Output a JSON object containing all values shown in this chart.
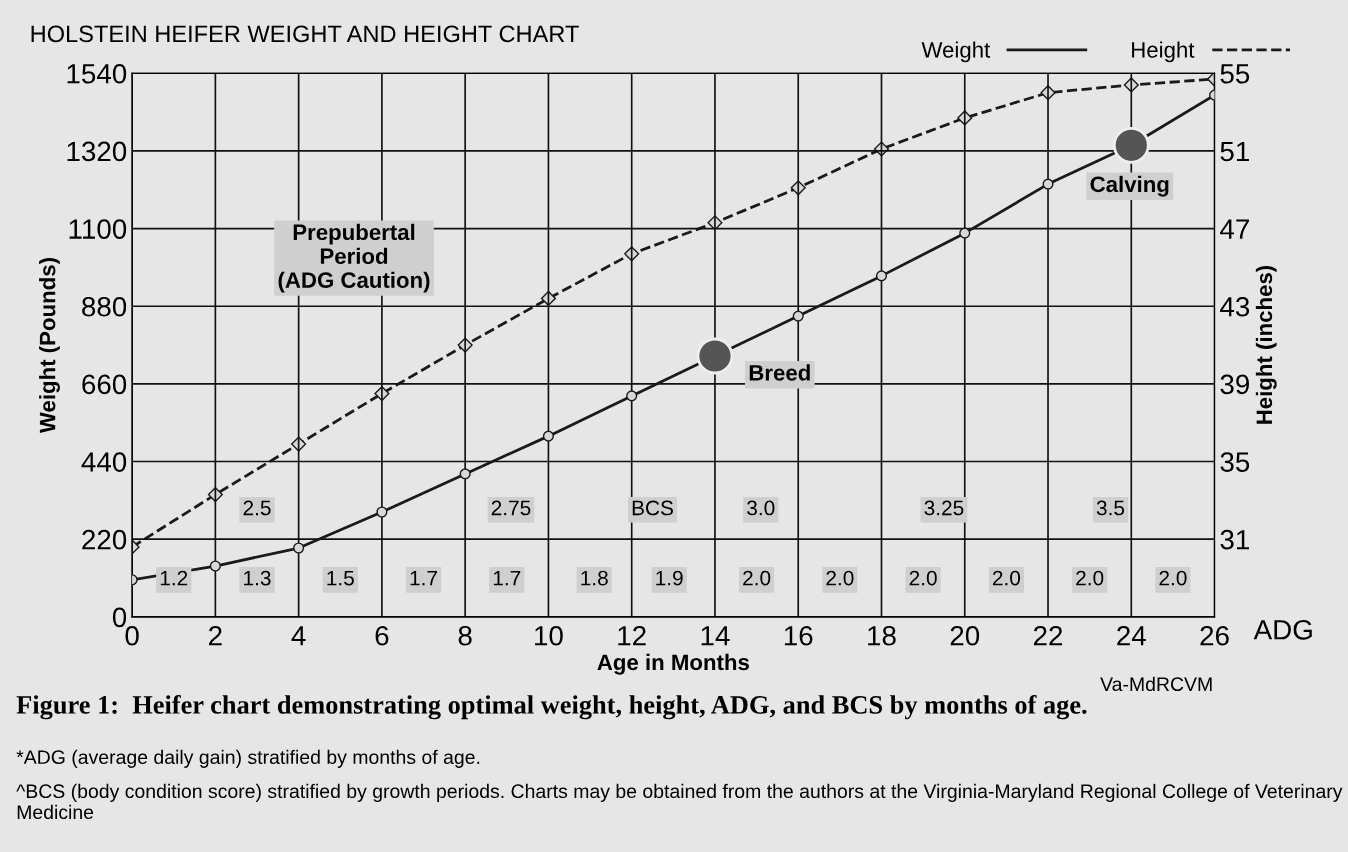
{
  "chart_data": {
    "type": "line",
    "title": "HOLSTEIN HEIFER WEIGHT AND HEIGHT CHART",
    "xlabel": "Age in Months",
    "ylabel": "Weight (Pounds)",
    "y2label": "Height (inches)",
    "x": [
      0,
      2,
      4,
      6,
      8,
      10,
      12,
      14,
      16,
      18,
      20,
      22,
      24,
      26
    ],
    "series": [
      {
        "name": "Weight",
        "color": "#1a1a1a",
        "line_style": "solid",
        "marker": "circle",
        "values": [
          105,
          144,
          195,
          297,
          405,
          512,
          626,
          739,
          852,
          966,
          1087,
          1226,
          1336,
          1478
        ]
      },
      {
        "name": "Height",
        "color": "#1a1a1a",
        "line_style": "dashed",
        "marker": "diamond",
        "axis": "y2",
        "values": [
          30.6,
          33.3,
          35.9,
          38.5,
          41.0,
          43.4,
          45.7,
          47.3,
          49.1,
          51.1,
          52.7,
          54.0,
          54.4,
          54.7
        ]
      },
      {
        "type": "scatter",
        "color": "#555555",
        "marker": "circle",
        "x": [
          14,
          24
        ],
        "values": [
          739,
          1336
        ]
      }
    ],
    "xlim": [
      0,
      26
    ],
    "xticks": [
      0,
      2,
      4,
      6,
      8,
      10,
      12,
      14,
      16,
      18,
      20,
      22,
      24,
      26
    ],
    "ylim": [
      0,
      1540
    ],
    "yticks": [
      0,
      220,
      440,
      660,
      880,
      1100,
      1320,
      1540
    ],
    "y2lim": [
      27,
      55
    ],
    "y2ticks": [
      31,
      35,
      39,
      43,
      47,
      51,
      55
    ],
    "grid": true,
    "legend": "top right",
    "annotations": [
      "ADG",
      "Va-MdRCVM",
      "Figure 1:  Heifer chart demonstrating optimal weight, height, ADG, and BCS by months of age.",
      "*ADG (average daily gain) stratified by months of age.",
      "^BCS (body condition score) stratified by growth periods. Charts may be obtained from the authors at the Virginia-Maryland Regional College of Veterinary Medicine",
      {
        "text": "Breed",
        "x": 14,
        "y": 739
      },
      {
        "text": "Calving",
        "x": 24,
        "y": 1336
      },
      "Prepubertal\nPeriod\n(ADG Caution)",
      "2.5",
      "2.75",
      "BCS",
      "3.0",
      "3.25",
      "3.5",
      "1.2",
      "1.3",
      "1.5",
      "1.7",
      "1.7",
      "1.8",
      "1.9",
      "2.0",
      "2.0",
      "2.0",
      "2.0",
      "2.0",
      "2.0"
    ]
  }
}
